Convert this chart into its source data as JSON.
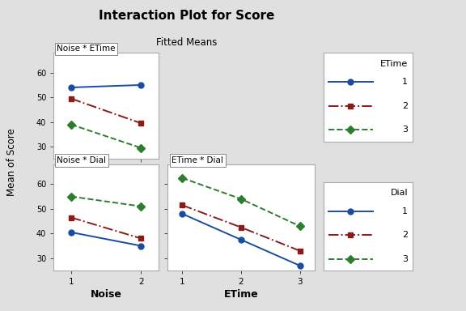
{
  "title": "Interaction Plot for Score",
  "subtitle": "Fitted Means",
  "ylabel": "Mean of Score",
  "bg_color": "#e0e0e0",
  "panel_face": "#ffffff",
  "noise_etime": {
    "title": "Noise * ETime",
    "xlabel": "Noise",
    "xticks": [
      1,
      2
    ],
    "series": [
      {
        "label": "1",
        "x": [
          1,
          2
        ],
        "y": [
          54,
          55
        ],
        "color": "#1a4d9e",
        "marker": "o",
        "linestyle": "-"
      },
      {
        "label": "2",
        "x": [
          1,
          2
        ],
        "y": [
          49.5,
          39.5
        ],
        "color": "#8b1a1a",
        "marker": "s",
        "linestyle": "-."
      },
      {
        "label": "3",
        "x": [
          1,
          2
        ],
        "y": [
          39,
          29.5
        ],
        "color": "#2e7d2e",
        "marker": "D",
        "linestyle": "--"
      }
    ],
    "ylim": [
      25,
      68
    ],
    "yticks": [
      30,
      40,
      50,
      60
    ]
  },
  "noise_dial": {
    "title": "Noise * Dial",
    "xlabel": "Noise",
    "xticks": [
      1,
      2
    ],
    "series": [
      {
        "label": "1",
        "x": [
          1,
          2
        ],
        "y": [
          40.5,
          35
        ],
        "color": "#1a4d9e",
        "marker": "o",
        "linestyle": "-"
      },
      {
        "label": "2",
        "x": [
          1,
          2
        ],
        "y": [
          46.5,
          38
        ],
        "color": "#8b1a1a",
        "marker": "s",
        "linestyle": "-."
      },
      {
        "label": "3",
        "x": [
          1,
          2
        ],
        "y": [
          55,
          51
        ],
        "color": "#2e7d2e",
        "marker": "D",
        "linestyle": "--"
      }
    ],
    "ylim": [
      25,
      68
    ],
    "yticks": [
      30,
      40,
      50,
      60
    ]
  },
  "etime_dial": {
    "title": "ETime * Dial",
    "xlabel": "ETime",
    "xticks": [
      1,
      2,
      3
    ],
    "series": [
      {
        "label": "1",
        "x": [
          1,
          2,
          3
        ],
        "y": [
          48,
          37.5,
          27
        ],
        "color": "#1a4d9e",
        "marker": "o",
        "linestyle": "-"
      },
      {
        "label": "2",
        "x": [
          1,
          2,
          3
        ],
        "y": [
          51.5,
          42.5,
          33
        ],
        "color": "#8b1a1a",
        "marker": "s",
        "linestyle": "-."
      },
      {
        "label": "3",
        "x": [
          1,
          2,
          3
        ],
        "y": [
          62.5,
          54,
          43
        ],
        "color": "#2e7d2e",
        "marker": "D",
        "linestyle": "--"
      }
    ],
    "ylim": [
      25,
      68
    ],
    "yticks": [
      30,
      40,
      50,
      60
    ]
  }
}
